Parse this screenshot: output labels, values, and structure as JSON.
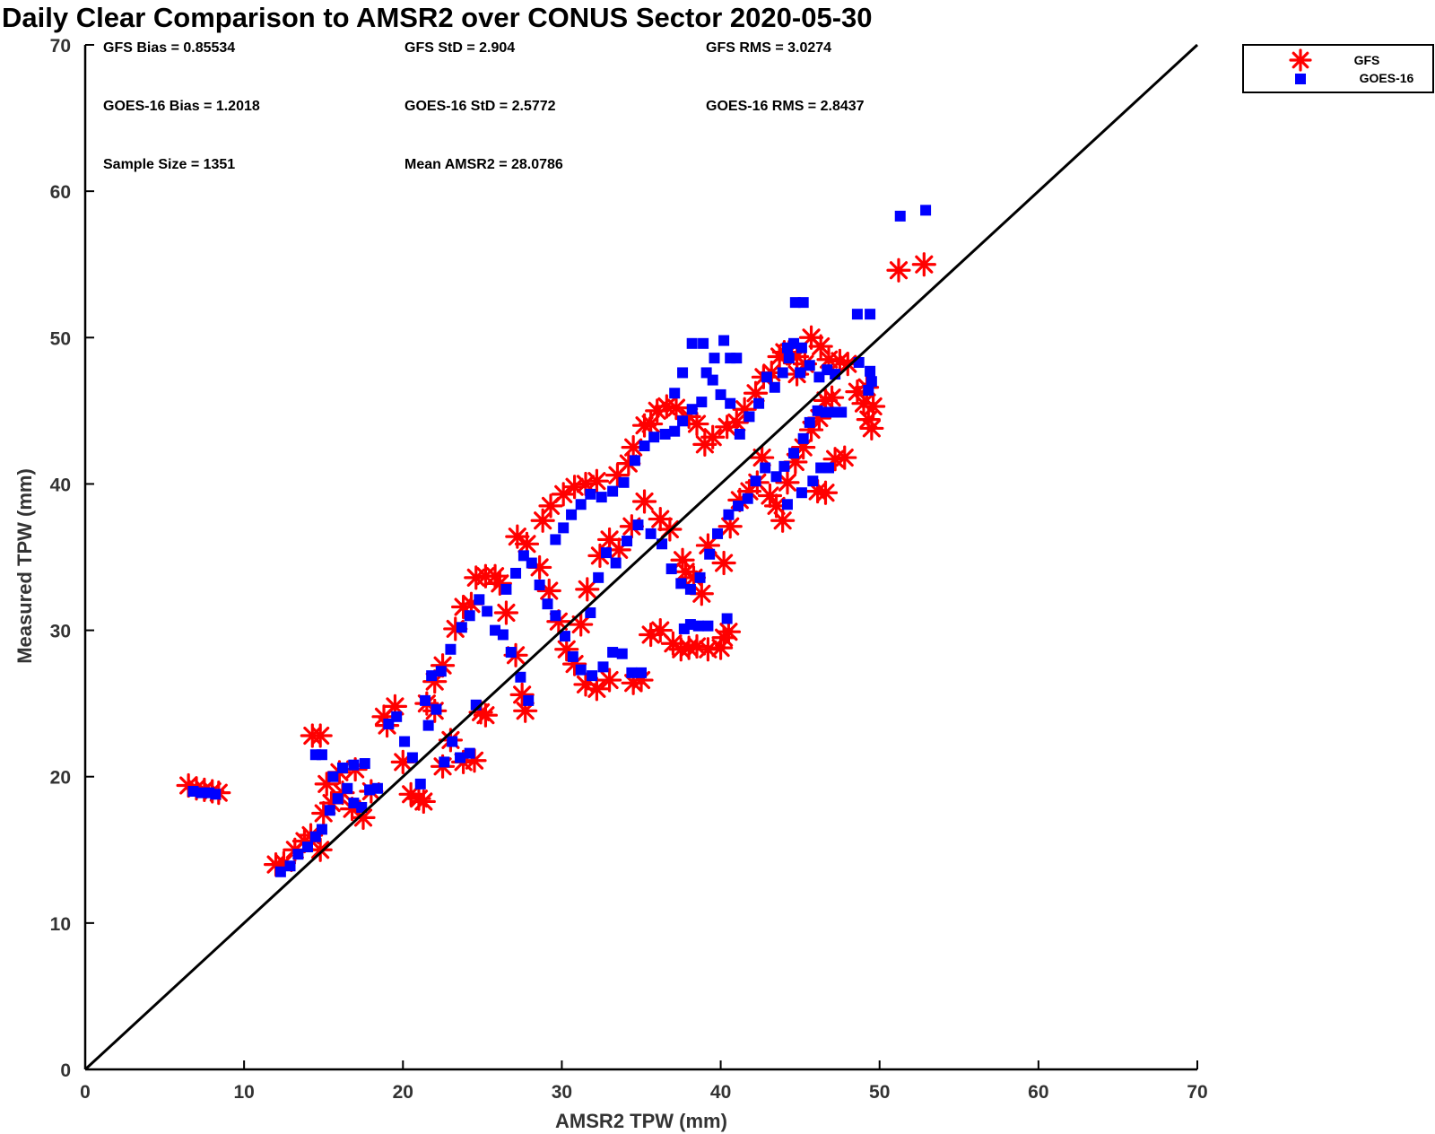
{
  "chart_data": {
    "type": "scatter",
    "title": "Daily Clear Comparison to AMSR2 over CONUS Sector 2020-05-30",
    "xlabel": "AMSR2 TPW (mm)",
    "ylabel": "Measured TPW (mm)",
    "xlim": [
      0,
      70
    ],
    "ylim": [
      0,
      70
    ],
    "xticks": [
      "0",
      "10",
      "20",
      "30",
      "40",
      "50",
      "60",
      "70"
    ],
    "yticks": [
      "0",
      "10",
      "20",
      "30",
      "40",
      "50",
      "60",
      "70"
    ],
    "grid": false,
    "legend_position": "outside top-right",
    "reference_line": {
      "name": "1:1",
      "x": [
        0,
        70
      ],
      "y": [
        0,
        70
      ],
      "color": "#000000"
    },
    "stats": [
      "GFS Bias = 0.85534",
      "GFS StD = 2.904",
      "GFS RMS = 3.0274",
      "GOES-16 Bias = 1.2018",
      "GOES-16 StD = 2.5772",
      "GOES-16 RMS = 2.8437",
      "Sample Size = 1351",
      "Mean AMSR2 = 28.0786"
    ],
    "series": [
      {
        "name": "GFS",
        "marker": "asterisk",
        "color": "#ff0000",
        "points": [
          [
            6.5,
            19.4
          ],
          [
            7.0,
            19.2
          ],
          [
            7.5,
            19.1
          ],
          [
            8.0,
            19.0
          ],
          [
            8.4,
            18.9
          ],
          [
            12.0,
            14.0
          ],
          [
            12.5,
            14.1
          ],
          [
            13.2,
            15.0
          ],
          [
            13.8,
            15.6
          ],
          [
            14.2,
            16.0
          ],
          [
            14.8,
            15.0
          ],
          [
            15.0,
            17.5
          ],
          [
            15.5,
            18.2
          ],
          [
            16.2,
            18.9
          ],
          [
            16.8,
            17.8
          ],
          [
            17.5,
            17.2
          ],
          [
            18.0,
            19.0
          ],
          [
            14.3,
            22.8
          ],
          [
            14.8,
            22.8
          ],
          [
            15.2,
            19.5
          ],
          [
            16.0,
            20.3
          ],
          [
            17.0,
            20.5
          ],
          [
            18.8,
            24.1
          ],
          [
            19.0,
            23.5
          ],
          [
            19.5,
            24.8
          ],
          [
            20.0,
            21.0
          ],
          [
            20.5,
            18.8
          ],
          [
            21.0,
            18.5
          ],
          [
            21.3,
            18.3
          ],
          [
            21.5,
            25.0
          ],
          [
            22.0,
            24.5
          ],
          [
            22.5,
            20.7
          ],
          [
            23.0,
            22.5
          ],
          [
            23.8,
            21.0
          ],
          [
            24.5,
            21.1
          ],
          [
            24.9,
            24.4
          ],
          [
            25.2,
            24.2
          ],
          [
            22.0,
            26.5
          ],
          [
            22.5,
            27.6
          ],
          [
            23.3,
            30.1
          ],
          [
            23.8,
            31.6
          ],
          [
            24.3,
            31.8
          ],
          [
            24.6,
            33.6
          ],
          [
            25.2,
            33.7
          ],
          [
            25.8,
            33.7
          ],
          [
            26.1,
            33.2
          ],
          [
            26.5,
            31.2
          ],
          [
            27.1,
            28.3
          ],
          [
            27.5,
            25.6
          ],
          [
            27.7,
            24.5
          ],
          [
            27.2,
            36.4
          ],
          [
            27.8,
            35.9
          ],
          [
            28.6,
            34.3
          ],
          [
            29.2,
            32.7
          ],
          [
            29.8,
            30.6
          ],
          [
            30.3,
            28.7
          ],
          [
            30.8,
            27.7
          ],
          [
            31.5,
            26.3
          ],
          [
            32.2,
            26.0
          ],
          [
            33.0,
            26.6
          ],
          [
            34.5,
            26.4
          ],
          [
            35.0,
            26.6
          ],
          [
            35.6,
            29.7
          ],
          [
            36.2,
            30.0
          ],
          [
            28.8,
            37.5
          ],
          [
            29.3,
            38.5
          ],
          [
            30.1,
            39.3
          ],
          [
            30.8,
            39.8
          ],
          [
            31.5,
            40.0
          ],
          [
            32.2,
            40.2
          ],
          [
            33.5,
            40.6
          ],
          [
            34.2,
            41.4
          ],
          [
            34.5,
            42.5
          ],
          [
            35.2,
            44.0
          ],
          [
            35.6,
            44.1
          ],
          [
            36.0,
            45.0
          ],
          [
            36.6,
            45.3
          ],
          [
            37.2,
            45.2
          ],
          [
            38.0,
            44.6
          ],
          [
            38.5,
            44.1
          ],
          [
            31.2,
            30.4
          ],
          [
            31.6,
            32.8
          ],
          [
            32.4,
            35.1
          ],
          [
            33.0,
            36.2
          ],
          [
            33.6,
            35.5
          ],
          [
            34.4,
            37.1
          ],
          [
            35.2,
            38.8
          ],
          [
            36.2,
            37.6
          ],
          [
            36.8,
            36.9
          ],
          [
            37.6,
            34.8
          ],
          [
            37.8,
            34.0
          ],
          [
            38.3,
            33.6
          ],
          [
            38.8,
            32.5
          ],
          [
            39.2,
            35.8
          ],
          [
            40.2,
            34.6
          ],
          [
            40.6,
            37.1
          ],
          [
            41.2,
            38.9
          ],
          [
            41.8,
            39.5
          ],
          [
            42.3,
            40.1
          ],
          [
            42.6,
            41.8
          ],
          [
            37.0,
            29.1
          ],
          [
            37.5,
            28.7
          ],
          [
            38.0,
            28.8
          ],
          [
            38.5,
            28.9
          ],
          [
            39.2,
            28.7
          ],
          [
            40.0,
            28.8
          ],
          [
            40.2,
            29.5
          ],
          [
            40.5,
            29.9
          ],
          [
            39.0,
            42.7
          ],
          [
            39.5,
            43.2
          ],
          [
            40.4,
            43.9
          ],
          [
            41.0,
            44.2
          ],
          [
            41.5,
            45.1
          ],
          [
            42.2,
            46.2
          ],
          [
            42.7,
            47.3
          ],
          [
            43.2,
            47.6
          ],
          [
            43.7,
            48.7
          ],
          [
            44.3,
            49.0
          ],
          [
            44.8,
            48.7
          ],
          [
            45.3,
            48.2
          ],
          [
            45.7,
            50.0
          ],
          [
            46.3,
            49.4
          ],
          [
            46.8,
            48.5
          ],
          [
            43.1,
            39.2
          ],
          [
            43.5,
            38.5
          ],
          [
            43.9,
            37.5
          ],
          [
            44.2,
            40.1
          ],
          [
            44.7,
            41.5
          ],
          [
            45.2,
            42.5
          ],
          [
            45.7,
            43.7
          ],
          [
            46.2,
            44.5
          ],
          [
            46.6,
            45.7
          ],
          [
            47.0,
            45.9
          ],
          [
            47.2,
            41.7
          ],
          [
            47.8,
            41.8
          ],
          [
            46.1,
            39.5
          ],
          [
            46.6,
            39.4
          ],
          [
            44.0,
            49.0
          ],
          [
            44.8,
            47.5
          ],
          [
            47.5,
            48.4
          ],
          [
            48.0,
            48.2
          ],
          [
            48.6,
            46.3
          ],
          [
            49.0,
            45.5
          ],
          [
            49.3,
            44.4
          ],
          [
            49.5,
            43.8
          ],
          [
            49.6,
            45.3
          ],
          [
            49.2,
            46.6
          ],
          [
            51.2,
            54.6
          ],
          [
            52.8,
            55.0
          ]
        ]
      },
      {
        "name": "GOES-16",
        "marker": "square",
        "color": "#0000ff",
        "points": [
          [
            6.8,
            19.0
          ],
          [
            7.3,
            18.9
          ],
          [
            7.8,
            18.9
          ],
          [
            8.2,
            18.8
          ],
          [
            12.3,
            13.5
          ],
          [
            12.9,
            13.9
          ],
          [
            13.4,
            14.7
          ],
          [
            14.0,
            15.2
          ],
          [
            14.5,
            15.9
          ],
          [
            14.9,
            16.4
          ],
          [
            15.4,
            17.7
          ],
          [
            15.9,
            18.5
          ],
          [
            16.5,
            19.2
          ],
          [
            16.9,
            18.2
          ],
          [
            17.4,
            17.9
          ],
          [
            17.9,
            19.1
          ],
          [
            14.5,
            21.5
          ],
          [
            14.9,
            21.5
          ],
          [
            15.6,
            20.0
          ],
          [
            16.2,
            20.6
          ],
          [
            16.9,
            20.8
          ],
          [
            17.6,
            20.9
          ],
          [
            18.4,
            19.2
          ],
          [
            19.1,
            23.6
          ],
          [
            19.6,
            24.1
          ],
          [
            20.1,
            22.4
          ],
          [
            20.6,
            21.3
          ],
          [
            21.1,
            19.5
          ],
          [
            21.6,
            23.5
          ],
          [
            22.1,
            24.6
          ],
          [
            22.6,
            21.0
          ],
          [
            23.1,
            22.4
          ],
          [
            23.6,
            21.3
          ],
          [
            24.2,
            21.6
          ],
          [
            24.6,
            24.9
          ],
          [
            21.4,
            25.2
          ],
          [
            21.8,
            26.9
          ],
          [
            22.4,
            27.2
          ],
          [
            23.0,
            28.7
          ],
          [
            23.7,
            30.2
          ],
          [
            24.2,
            31.0
          ],
          [
            24.8,
            32.1
          ],
          [
            25.3,
            31.3
          ],
          [
            25.8,
            30.0
          ],
          [
            26.3,
            29.7
          ],
          [
            26.8,
            28.5
          ],
          [
            27.4,
            26.8
          ],
          [
            27.9,
            25.2
          ],
          [
            26.5,
            32.8
          ],
          [
            27.1,
            33.9
          ],
          [
            27.6,
            35.1
          ],
          [
            28.1,
            34.6
          ],
          [
            28.6,
            33.1
          ],
          [
            29.1,
            31.8
          ],
          [
            29.6,
            31.0
          ],
          [
            30.2,
            29.6
          ],
          [
            30.7,
            28.2
          ],
          [
            31.2,
            27.3
          ],
          [
            31.9,
            26.9
          ],
          [
            32.6,
            27.5
          ],
          [
            33.2,
            28.5
          ],
          [
            33.8,
            28.4
          ],
          [
            34.4,
            27.1
          ],
          [
            35.0,
            27.1
          ],
          [
            29.6,
            36.2
          ],
          [
            30.1,
            37.0
          ],
          [
            30.6,
            37.9
          ],
          [
            31.2,
            38.6
          ],
          [
            31.8,
            39.3
          ],
          [
            32.5,
            39.1
          ],
          [
            33.2,
            39.5
          ],
          [
            33.9,
            40.1
          ],
          [
            34.6,
            41.6
          ],
          [
            35.2,
            42.6
          ],
          [
            35.8,
            43.2
          ],
          [
            36.5,
            43.4
          ],
          [
            37.1,
            43.6
          ],
          [
            37.6,
            44.3
          ],
          [
            38.2,
            45.1
          ],
          [
            38.8,
            45.6
          ],
          [
            31.8,
            31.2
          ],
          [
            32.3,
            33.6
          ],
          [
            32.8,
            35.3
          ],
          [
            33.4,
            34.6
          ],
          [
            34.1,
            36.1
          ],
          [
            34.8,
            37.2
          ],
          [
            35.6,
            36.6
          ],
          [
            36.3,
            35.9
          ],
          [
            36.9,
            34.2
          ],
          [
            37.5,
            33.2
          ],
          [
            38.1,
            32.8
          ],
          [
            38.7,
            33.6
          ],
          [
            39.3,
            35.2
          ],
          [
            39.8,
            36.6
          ],
          [
            40.5,
            37.9
          ],
          [
            41.1,
            38.5
          ],
          [
            41.7,
            39.0
          ],
          [
            42.2,
            40.2
          ],
          [
            42.8,
            41.1
          ],
          [
            37.7,
            30.1
          ],
          [
            38.1,
            30.4
          ],
          [
            38.6,
            30.3
          ],
          [
            39.2,
            30.3
          ],
          [
            40.4,
            30.8
          ],
          [
            37.1,
            46.2
          ],
          [
            37.6,
            47.6
          ],
          [
            38.2,
            49.6
          ],
          [
            38.9,
            49.6
          ],
          [
            39.6,
            48.6
          ],
          [
            40.2,
            49.8
          ],
          [
            40.6,
            48.6
          ],
          [
            41.0,
            48.6
          ],
          [
            39.1,
            47.6
          ],
          [
            39.5,
            47.1
          ],
          [
            40.0,
            46.1
          ],
          [
            40.6,
            45.5
          ],
          [
            41.2,
            43.4
          ],
          [
            41.8,
            44.6
          ],
          [
            42.4,
            45.5
          ],
          [
            42.9,
            47.3
          ],
          [
            43.4,
            46.6
          ],
          [
            43.9,
            47.6
          ],
          [
            44.3,
            48.6
          ],
          [
            44.6,
            49.6
          ],
          [
            45.0,
            47.6
          ],
          [
            45.6,
            48.1
          ],
          [
            46.2,
            47.3
          ],
          [
            46.7,
            47.8
          ],
          [
            47.2,
            47.5
          ],
          [
            44.2,
            49.3
          ],
          [
            45.1,
            49.3
          ],
          [
            43.5,
            40.5
          ],
          [
            44.0,
            41.2
          ],
          [
            44.6,
            42.1
          ],
          [
            45.2,
            43.1
          ],
          [
            45.6,
            44.2
          ],
          [
            46.1,
            45.0
          ],
          [
            46.6,
            44.9
          ],
          [
            47.1,
            44.9
          ],
          [
            47.6,
            44.9
          ],
          [
            46.3,
            41.1
          ],
          [
            46.8,
            41.1
          ],
          [
            44.2,
            38.6
          ],
          [
            45.1,
            39.4
          ],
          [
            45.8,
            40.2
          ],
          [
            44.7,
            52.4
          ],
          [
            45.2,
            52.4
          ],
          [
            48.6,
            51.6
          ],
          [
            49.4,
            51.6
          ],
          [
            48.7,
            48.3
          ],
          [
            49.4,
            47.7
          ],
          [
            49.5,
            47.0
          ],
          [
            49.3,
            46.4
          ],
          [
            51.3,
            58.3
          ],
          [
            52.9,
            58.7
          ]
        ]
      }
    ]
  },
  "legend": {
    "items": [
      {
        "label": "GFS",
        "color": "#ff0000",
        "marker": "asterisk"
      },
      {
        "label": "GOES-16",
        "color": "#0000ff",
        "marker": "square"
      }
    ]
  }
}
